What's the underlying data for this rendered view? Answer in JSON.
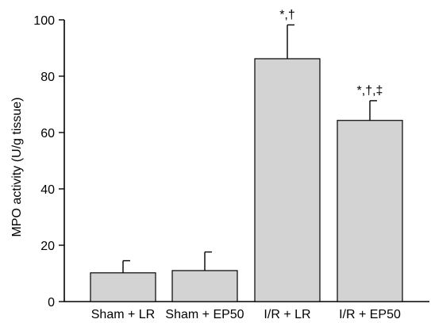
{
  "chart_data": {
    "type": "bar",
    "ylabel": "MPO activity (U/g tissue)",
    "xlabel": "",
    "ylim": [
      0,
      100
    ],
    "yticks": [
      0,
      20,
      40,
      60,
      80,
      100
    ],
    "categories": [
      "Sham + LR",
      "Sham + EP50",
      "I/R + LR",
      "I/R + EP50"
    ],
    "values": [
      10.2,
      11.0,
      86.2,
      64.3
    ],
    "errors": [
      4.3,
      6.6,
      12.0,
      7.0
    ],
    "annotations": [
      "",
      "",
      "*,†",
      "*,†,‡"
    ],
    "bar_color": "#d3d3d3",
    "grid": false,
    "legend": "none"
  }
}
